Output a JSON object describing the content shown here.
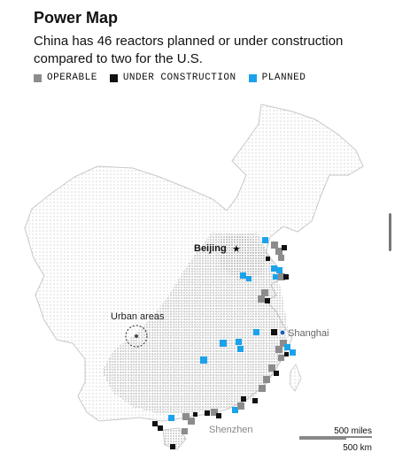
{
  "title": "Power Map",
  "subtitle": "China has 46 reactors planned or under construction compared to two for the U.S.",
  "legend": [
    {
      "label": "OPERABLE",
      "color": "#8c8c8c"
    },
    {
      "label": "UNDER CONSTRUCTION",
      "color": "#111111"
    },
    {
      "label": "PLANNED",
      "color": "#1aa3ec"
    }
  ],
  "map": {
    "labels": {
      "capital": "Beijing",
      "capital_symbol": "★",
      "city_east": "Shanghai",
      "city_south": "Shenzhen",
      "urban_callout": "Urban areas"
    },
    "scale": {
      "miles": "500 miles",
      "km": "500 km"
    }
  }
}
